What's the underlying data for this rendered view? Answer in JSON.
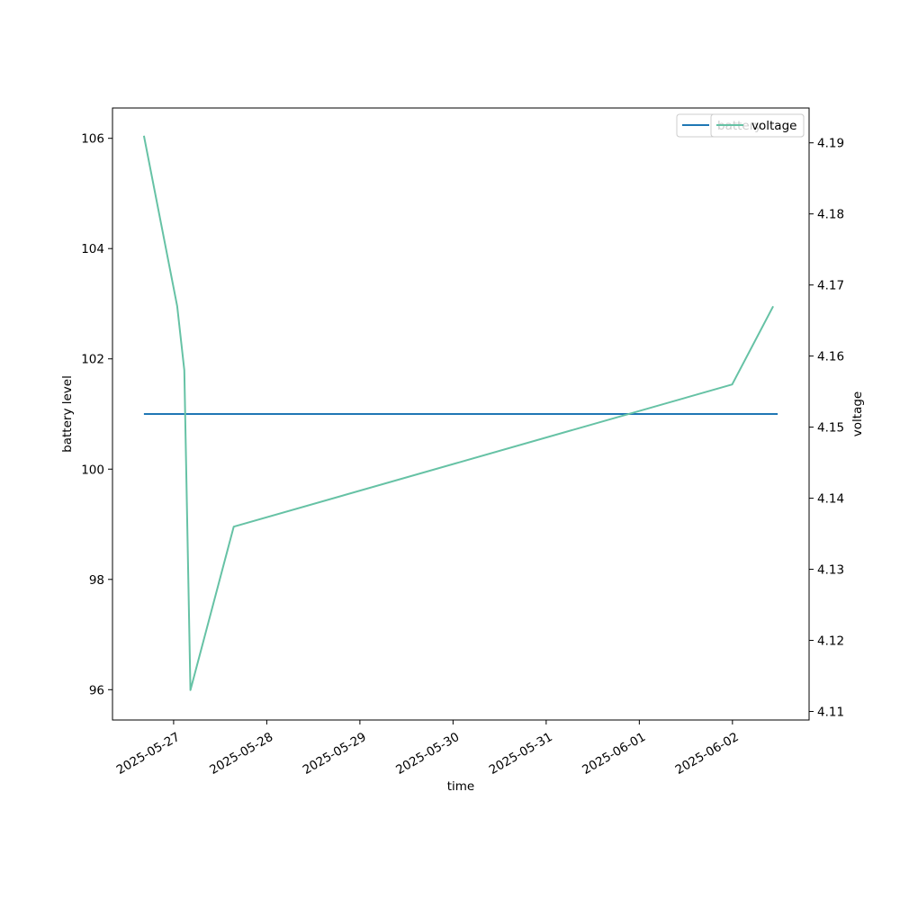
{
  "chart_data": {
    "type": "line",
    "xlabel": "time",
    "ylabel_left": "battery level",
    "ylabel_right": "voltage",
    "x_ticks": [
      "2025-05-27",
      "2025-05-28",
      "2025-05-29",
      "2025-05-30",
      "2025-05-31",
      "2025-06-01",
      "2025-06-02"
    ],
    "y_left_ticks": [
      96,
      98,
      100,
      102,
      104,
      106
    ],
    "y_right_ticks": [
      4.11,
      4.12,
      4.13,
      4.14,
      4.15,
      4.16,
      4.17,
      4.18,
      4.19
    ],
    "x_range": [
      "2025-05-26 08:15",
      "2025-06-02 19:45"
    ],
    "y_left_range": [
      95.45,
      106.55
    ],
    "y_right_range": [
      4.1088,
      4.1949
    ],
    "legend": {
      "placement": "top-right",
      "overlapping": true
    },
    "grid": false,
    "series": [
      {
        "name": "battery",
        "axis": "left",
        "color": "#1f77b4",
        "points": [
          [
            "2025-05-26 16:20",
            101
          ],
          [
            "2025-06-02 11:40",
            101
          ]
        ]
      },
      {
        "name": "voltage",
        "axis": "right",
        "color": "#66c2a5",
        "points": [
          [
            "2025-05-26 16:20",
            4.191
          ],
          [
            "2025-05-27 00:55",
            4.167
          ],
          [
            "2025-05-27 02:45",
            4.158
          ],
          [
            "2025-05-27 04:20",
            4.113
          ],
          [
            "2025-05-27 15:30",
            4.136
          ],
          [
            "2025-06-01 23:55",
            4.156
          ],
          [
            "2025-06-02 10:30",
            4.167
          ]
        ]
      }
    ]
  }
}
